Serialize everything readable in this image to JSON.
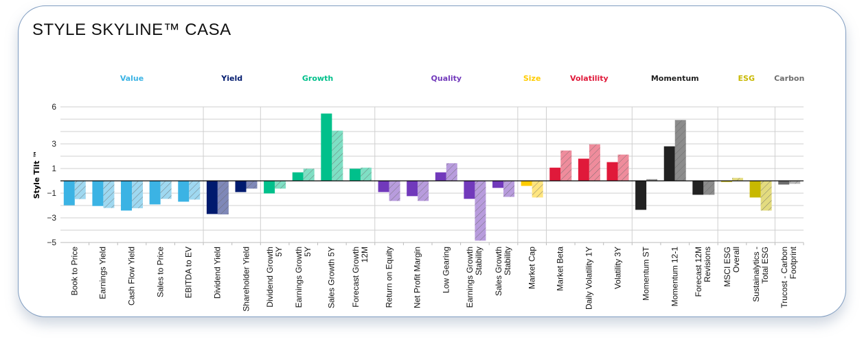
{
  "title": "STYLE SKYLINE™ CASA",
  "chart_data": {
    "type": "bar",
    "ylabel": "Style Tilt ™",
    "ylim": [
      -5,
      6
    ],
    "yticks": [
      6,
      3,
      1,
      -1,
      -3,
      -5
    ],
    "grid": true,
    "groups": [
      {
        "name": "Value",
        "color": "#3bb3e4",
        "light": "#9fd8f0",
        "categories": [
          "Book to Price",
          "Earnings Yield",
          "Cash Flow Yield",
          "Sales to Price",
          "EBITDA to EV"
        ],
        "portfolio": [
          -1.98,
          -2.04,
          -2.41,
          -1.91,
          -1.69
        ],
        "benchmark": [
          -1.48,
          -2.2,
          -2.22,
          -1.46,
          -1.52
        ]
      },
      {
        "name": "Yield",
        "color": "#001a6e",
        "light": "#7f88b8",
        "categories": [
          "Dividend Yield",
          "Shareholder Yield"
        ],
        "portfolio": [
          -2.69,
          -0.91
        ],
        "benchmark": [
          -2.72,
          -0.63
        ]
      },
      {
        "name": "Growth",
        "color": "#00c08b",
        "light": "#7fdfc4",
        "categories": [
          "Dividend Growth 5Y",
          "Earnings Growth 5Y",
          "Sales Growth 5Y",
          "Forecast Growth 12M"
        ],
        "portfolio": [
          -1.02,
          0.69,
          5.46,
          0.98
        ],
        "benchmark": [
          -0.63,
          0.98,
          4.07,
          1.07
        ]
      },
      {
        "name": "Quality",
        "color": "#7139bb",
        "light": "#b89cdd",
        "categories": [
          "Return on Equity",
          "Net Profit Margin",
          "Low Gearing",
          "Earnings Growth Stability",
          "Sales Growth Stability"
        ],
        "portfolio": [
          -0.91,
          -1.24,
          0.69,
          -1.46,
          -0.57
        ],
        "benchmark": [
          -1.63,
          -1.63,
          1.43,
          -4.85,
          -1.3
        ]
      },
      {
        "name": "Size",
        "color": "#ffcc00",
        "light": "#ffe57f",
        "categories": [
          "Market Cap"
        ],
        "portfolio": [
          -0.41
        ],
        "benchmark": [
          -1.35
        ]
      },
      {
        "name": "Volatility",
        "color": "#e0193a",
        "light": "#ef8c9c",
        "categories": [
          "Market Beta",
          "Daily Volatility 1Y",
          "Volatility 3Y"
        ],
        "portfolio": [
          1.07,
          1.8,
          1.52
        ],
        "benchmark": [
          2.46,
          2.96,
          2.13
        ]
      },
      {
        "name": "Momentum",
        "color": "#222222",
        "light": "#8c8c8c",
        "categories": [
          "Momentum ST",
          "Momentum 12-1",
          "Forecast 12M Revisions"
        ],
        "portfolio": [
          -2.35,
          2.8,
          -1.13
        ],
        "benchmark": [
          0.13,
          4.93,
          -1.13
        ]
      },
      {
        "name": "ESG",
        "color": "#c8b800",
        "light": "#e3db7f",
        "categories": [
          "MSCI ESG Overall",
          "Sustainalytics - Total ESG"
        ],
        "portfolio": [
          -0.09,
          -1.35
        ],
        "benchmark": [
          0.24,
          -2.41
        ]
      },
      {
        "name": "Carbon",
        "color": "#6d6d6d",
        "light": "#b6b6b6",
        "categories": [
          "Trucost - Carbon Footprint"
        ],
        "portfolio": [
          -0.3
        ],
        "benchmark": [
          -0.24
        ]
      }
    ]
  }
}
